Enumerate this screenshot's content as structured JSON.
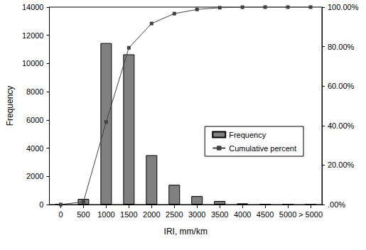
{
  "chart_data": {
    "type": "bar",
    "categories": [
      "0",
      "500",
      "1000",
      "1500",
      "2000",
      "2500",
      "3000",
      "3500",
      "4000",
      "4500",
      "5000",
      "> 5000"
    ],
    "series": [
      {
        "name": "Frequency",
        "type": "bar",
        "color": "#808080",
        "values": [
          0,
          400,
          11450,
          10650,
          3500,
          1400,
          600,
          250,
          80,
          20,
          10,
          5
        ]
      },
      {
        "name": "Cumulative percent",
        "type": "line",
        "axis": "y2",
        "color": "#404040",
        "marker": "square",
        "values": [
          0,
          1.4,
          41.8,
          79.4,
          91.7,
          96.7,
          98.8,
          99.7,
          99.96,
          100,
          100,
          100
        ]
      }
    ],
    "x_label": "IRI, mm/km",
    "y_label": "Frequency",
    "ylim": [
      0,
      14000
    ],
    "yticks": [
      0,
      2000,
      4000,
      6000,
      8000,
      10000,
      12000,
      14000
    ],
    "y2lim": [
      0,
      100
    ],
    "y2ticks": [
      {
        "value": 0,
        "label": ".00%"
      },
      {
        "value": 20,
        "label": "20.00%"
      },
      {
        "value": 40,
        "label": "40.00%"
      },
      {
        "value": 60,
        "label": "60.00%"
      },
      {
        "value": 80,
        "label": "80.00%"
      },
      {
        "value": 100,
        "label": "100.00%"
      }
    ],
    "grid": false,
    "legend": "right"
  }
}
